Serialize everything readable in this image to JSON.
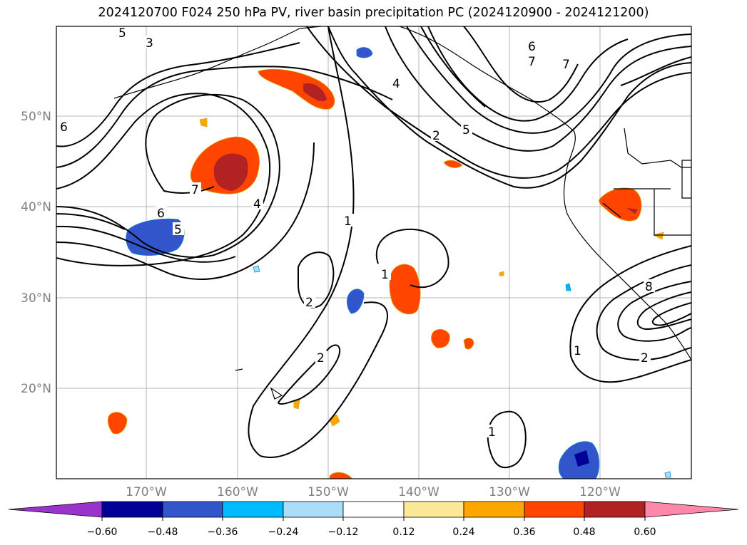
{
  "title": "2024120700 F024 250 hPa PV, river basin precipitation PC (2024120900 - 2024121200)",
  "map": {
    "lat_labels": [
      "50°N",
      "40°N",
      "30°N",
      "20°N"
    ],
    "lon_labels": [
      "170°W",
      "160°W",
      "150°W",
      "140°W",
      "130°W",
      "120°W"
    ],
    "grid": true
  },
  "contour_labels": [
    "5",
    "3",
    "6",
    "7",
    "4",
    "6",
    "5",
    "7",
    "6",
    "7",
    "4",
    "2",
    "5",
    "1",
    "1",
    "2",
    "2",
    "1",
    "1",
    "2",
    "8"
  ],
  "colorbar": {
    "tick_labels": [
      "−0.60",
      "−0.48",
      "−0.36",
      "−0.24",
      "−0.12",
      "0.12",
      "0.24",
      "0.36",
      "0.48",
      "0.60"
    ],
    "colors": [
      "#9933cc",
      "#000099",
      "#3355cc",
      "#00bbff",
      "#aaddf7",
      "#ffffff",
      "#fde89a",
      "#ffa500",
      "#ff4500",
      "#b22222",
      "#ff88aa"
    ],
    "extend": "both"
  }
}
